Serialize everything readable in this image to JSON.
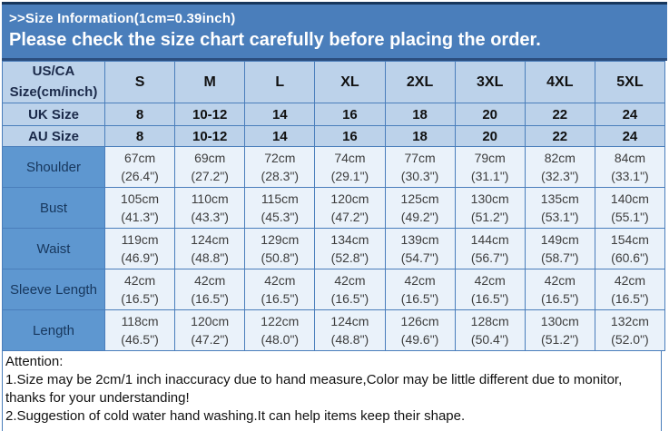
{
  "banner": {
    "line1": ">>Size Information(1cm=0.39inch)",
    "line2": "Please check the size chart carefully before placing the order."
  },
  "table": {
    "corner_header": "US/CA Size(cm/inch)",
    "sizes": [
      "S",
      "M",
      "L",
      "XL",
      "2XL",
      "3XL",
      "4XL",
      "5XL"
    ],
    "size_rows": [
      {
        "label": "UK Size",
        "values": [
          "8",
          "10-12",
          "14",
          "16",
          "18",
          "20",
          "22",
          "24"
        ]
      },
      {
        "label": "AU Size",
        "values": [
          "8",
          "10-12",
          "14",
          "16",
          "18",
          "20",
          "22",
          "24"
        ]
      }
    ],
    "measurement_rows": [
      {
        "label": "Shoulder",
        "cells": [
          {
            "cm": "67cm",
            "inch": "(26.4\")"
          },
          {
            "cm": "69cm",
            "inch": "(27.2\")"
          },
          {
            "cm": "72cm",
            "inch": "(28.3\")"
          },
          {
            "cm": "74cm",
            "inch": "(29.1\")"
          },
          {
            "cm": "77cm",
            "inch": "(30.3\")"
          },
          {
            "cm": "79cm",
            "inch": "(31.1\")"
          },
          {
            "cm": "82cm",
            "inch": "(32.3\")"
          },
          {
            "cm": "84cm",
            "inch": "(33.1\")"
          }
        ]
      },
      {
        "label": "Bust",
        "cells": [
          {
            "cm": "105cm",
            "inch": "(41.3\")"
          },
          {
            "cm": "110cm",
            "inch": "(43.3\")"
          },
          {
            "cm": "115cm",
            "inch": "(45.3\")"
          },
          {
            "cm": "120cm",
            "inch": "(47.2\")"
          },
          {
            "cm": "125cm",
            "inch": "(49.2\")"
          },
          {
            "cm": "130cm",
            "inch": "(51.2\")"
          },
          {
            "cm": "135cm",
            "inch": "(53.1\")"
          },
          {
            "cm": "140cm",
            "inch": "(55.1\")"
          }
        ]
      },
      {
        "label": "Waist",
        "cells": [
          {
            "cm": "119cm",
            "inch": "(46.9\")"
          },
          {
            "cm": "124cm",
            "inch": "(48.8\")"
          },
          {
            "cm": "129cm",
            "inch": "(50.8\")"
          },
          {
            "cm": "134cm",
            "inch": "(52.8\")"
          },
          {
            "cm": "139cm",
            "inch": "(54.7\")"
          },
          {
            "cm": "144cm",
            "inch": "(56.7\")"
          },
          {
            "cm": "149cm",
            "inch": "(58.7\")"
          },
          {
            "cm": "154cm",
            "inch": "(60.6\")"
          }
        ]
      },
      {
        "label": "Sleeve Length",
        "cells": [
          {
            "cm": "42cm",
            "inch": "(16.5\")"
          },
          {
            "cm": "42cm",
            "inch": "(16.5\")"
          },
          {
            "cm": "42cm",
            "inch": "(16.5\")"
          },
          {
            "cm": "42cm",
            "inch": "(16.5\")"
          },
          {
            "cm": "42cm",
            "inch": "(16.5\")"
          },
          {
            "cm": "42cm",
            "inch": "(16.5\")"
          },
          {
            "cm": "42cm",
            "inch": "(16.5\")"
          },
          {
            "cm": "42cm",
            "inch": "(16.5\")"
          }
        ]
      },
      {
        "label": "Length",
        "cells": [
          {
            "cm": "118cm",
            "inch": "(46.5\")"
          },
          {
            "cm": "120cm",
            "inch": "(47.2\")"
          },
          {
            "cm": "122cm",
            "inch": "(48.0\")"
          },
          {
            "cm": "124cm",
            "inch": "(48.8\")"
          },
          {
            "cm": "126cm",
            "inch": "(49.6\")"
          },
          {
            "cm": "128cm",
            "inch": "(50.4\")"
          },
          {
            "cm": "130cm",
            "inch": "(51.2\")"
          },
          {
            "cm": "132cm",
            "inch": "(52.0\")"
          }
        ]
      }
    ]
  },
  "notes": {
    "heading": "Attention:",
    "items": [
      "1.Size may be 2cm/1 inch inaccuracy due to hand measure,Color may be little different due to monitor, thanks for your understanding!",
      "2.Suggestion of cold water hand washing.It can help items keep their shape."
    ]
  },
  "colors": {
    "banner_blue": "#4A7EBB",
    "navy_border": "#16365C",
    "header_light_blue": "#BCD2EA",
    "label_medium_blue": "#5E97D0",
    "cell_light_blue": "#EAF2FA",
    "grid_border_blue": "#4A7EBB"
  }
}
